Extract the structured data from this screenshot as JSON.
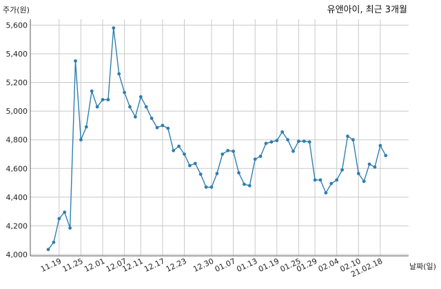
{
  "chart_data": {
    "type": "line",
    "title": "유앤아이, 최근 3개월",
    "ylabel": "주가(원)",
    "xlabel": "날짜(일)",
    "ylim": [
      4000,
      5650
    ],
    "yticks": [
      4000,
      4200,
      4400,
      4600,
      4800,
      5000,
      5200,
      5400,
      5600
    ],
    "ytick_labels": [
      "4,000",
      "4,200",
      "4,400",
      "4,600",
      "4,800",
      "5,000",
      "5,200",
      "5,400",
      "5,600"
    ],
    "xtick_labels": [
      "11.19",
      "11.25",
      "12.01",
      "12.07",
      "12.11",
      "12.17",
      "12.23",
      "12.30",
      "01.07",
      "01.13",
      "01.19",
      "01.25",
      "01.29",
      "02.04",
      "02.10",
      "21.02.18"
    ],
    "xtick_index": [
      2,
      6,
      10,
      14,
      17,
      21,
      25,
      30,
      34,
      38,
      42,
      46,
      49,
      53,
      57,
      61
    ],
    "grid": true,
    "line_color": "#2e7eaf",
    "series": [
      {
        "values": [
          4035,
          4085,
          4250,
          4295,
          4185,
          5350,
          4800,
          4890,
          5140,
          5030,
          5080,
          5080,
          5580,
          5260,
          5130,
          5030,
          4960,
          5100,
          5030,
          4950,
          4885,
          4900,
          4880,
          4725,
          4755,
          4700,
          4620,
          4635,
          4560,
          4470,
          4470,
          4565,
          4700,
          4725,
          4720,
          4570,
          4490,
          4480,
          4665,
          4685,
          4775,
          4785,
          4795,
          4855,
          4800,
          4720,
          4790,
          4790,
          4785,
          4520,
          4520,
          4430,
          4495,
          4520,
          4590,
          4825,
          4800,
          4565,
          4510,
          4630,
          4610,
          4760,
          4690
        ]
      }
    ]
  }
}
